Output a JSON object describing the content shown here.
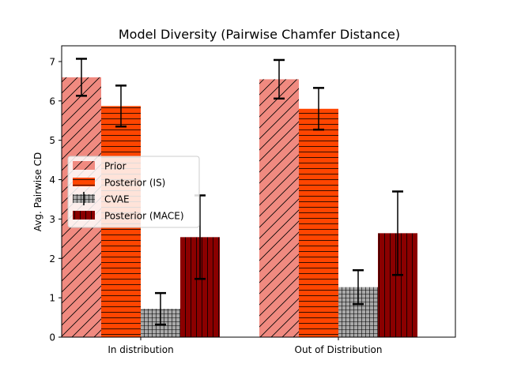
{
  "chart_data": {
    "type": "bar",
    "title": "Model Diversity (Pairwise Chamfer Distance)",
    "xlabel": "",
    "ylabel": "Avg. Pairwise CD",
    "categories": [
      "In distribution",
      "Out of Distribution"
    ],
    "ylim": [
      0,
      7.4
    ],
    "yticks": [
      0,
      1,
      2,
      3,
      4,
      5,
      6,
      7
    ],
    "legend_position": "center-left",
    "series": [
      {
        "name": "Prior",
        "values": [
          6.6,
          6.55
        ],
        "errors": [
          0.47,
          0.49
        ],
        "color": "#f08a80",
        "pattern": "diagonal"
      },
      {
        "name": "Posterior (IS)",
        "values": [
          5.87,
          5.8
        ],
        "errors": [
          0.52,
          0.53
        ],
        "color": "#ff4500",
        "pattern": "horizontal"
      },
      {
        "name": "CVAE",
        "values": [
          0.72,
          1.27
        ],
        "errors": [
          0.4,
          0.43
        ],
        "color": "#a9a9a9",
        "pattern": "grid"
      },
      {
        "name": "Posterior (MACE)",
        "values": [
          2.54,
          2.64
        ],
        "errors": [
          1.06,
          1.06
        ],
        "color": "#8b0000",
        "pattern": "vertical"
      }
    ]
  }
}
